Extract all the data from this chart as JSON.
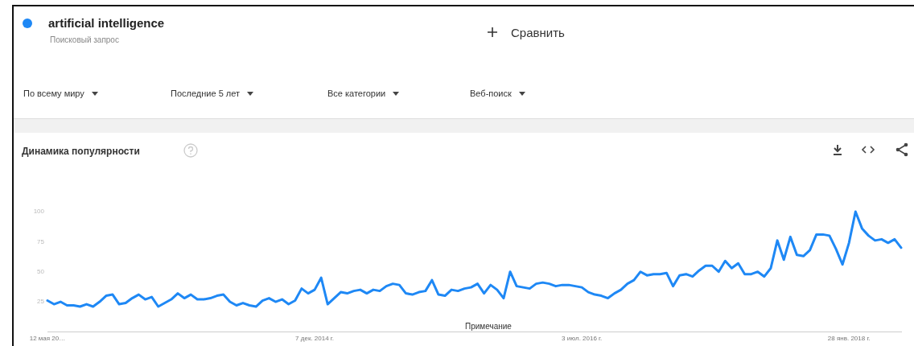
{
  "chart_data": {
    "type": "line",
    "title": "Динамика популярности",
    "subtitle": "Поисковый запрос",
    "annotations": [
      "Сравнить",
      "По всему миру",
      "Последние 5 лет",
      "Все категории",
      "Веб-поиск",
      "Примечание"
    ],
    "categories": [
      "12 мая 20…",
      null,
      null,
      null,
      null,
      null,
      null,
      null,
      null,
      null,
      null,
      null,
      null,
      null,
      null,
      null,
      null,
      null,
      null,
      null,
      null,
      null,
      null,
      null,
      null,
      null,
      null,
      null,
      null,
      null,
      null,
      null,
      null,
      null,
      null,
      null,
      null,
      null,
      null,
      null,
      null,
      "7 дек. 2014 г.",
      null,
      null,
      null,
      null,
      null,
      null,
      null,
      null,
      null,
      null,
      null,
      null,
      null,
      null,
      null,
      null,
      null,
      null,
      null,
      null,
      null,
      null,
      null,
      null,
      null,
      null,
      null,
      null,
      null,
      null,
      null,
      null,
      null,
      null,
      null,
      null,
      null,
      null,
      null,
      null,
      "3 июл. 2016 г.",
      null,
      null,
      null,
      null,
      null,
      null,
      null,
      null,
      null,
      null,
      null,
      null,
      null,
      null,
      null,
      null,
      null,
      null,
      null,
      null,
      null,
      null,
      null,
      null,
      null,
      null,
      null,
      null,
      null,
      null,
      null,
      null,
      null,
      null,
      null,
      null,
      null,
      null,
      null,
      null,
      "28 янв. 2018 г.",
      null,
      null,
      null,
      null,
      null,
      null,
      null,
      null
    ],
    "series": [
      {
        "name": "artificial intelligence",
        "color": "#1e88f5",
        "values": [
          26,
          23,
          25,
          22,
          22,
          21,
          23,
          21,
          25,
          30,
          31,
          23,
          24,
          28,
          31,
          27,
          29,
          21,
          24,
          27,
          32,
          28,
          31,
          27,
          27,
          28,
          30,
          31,
          25,
          22,
          24,
          22,
          21,
          26,
          28,
          25,
          27,
          23,
          26,
          36,
          32,
          35,
          45,
          23,
          28,
          33,
          32,
          34,
          35,
          32,
          35,
          34,
          38,
          40,
          39,
          32,
          31,
          33,
          34,
          43,
          31,
          30,
          35,
          34,
          36,
          37,
          40,
          32,
          39,
          35,
          28,
          50,
          38,
          37,
          36,
          40,
          41,
          40,
          38,
          39,
          39,
          38,
          37,
          33,
          31,
          30,
          28,
          32,
          35,
          40,
          43,
          50,
          47,
          48,
          48,
          49,
          38,
          47,
          48,
          46,
          51,
          55,
          55,
          50,
          59,
          53,
          57,
          48,
          48,
          50,
          46,
          53,
          76,
          60,
          79,
          64,
          63,
          68,
          81,
          81,
          80,
          69,
          56,
          74,
          100,
          86,
          80,
          76,
          77,
          74,
          77,
          70
        ]
      }
    ],
    "ylim": [
      0,
      100
    ],
    "yticks": [
      25,
      50,
      75,
      100
    ],
    "grid": false,
    "legend": "top left",
    "marker": "none",
    "line_style": "solid"
  }
}
